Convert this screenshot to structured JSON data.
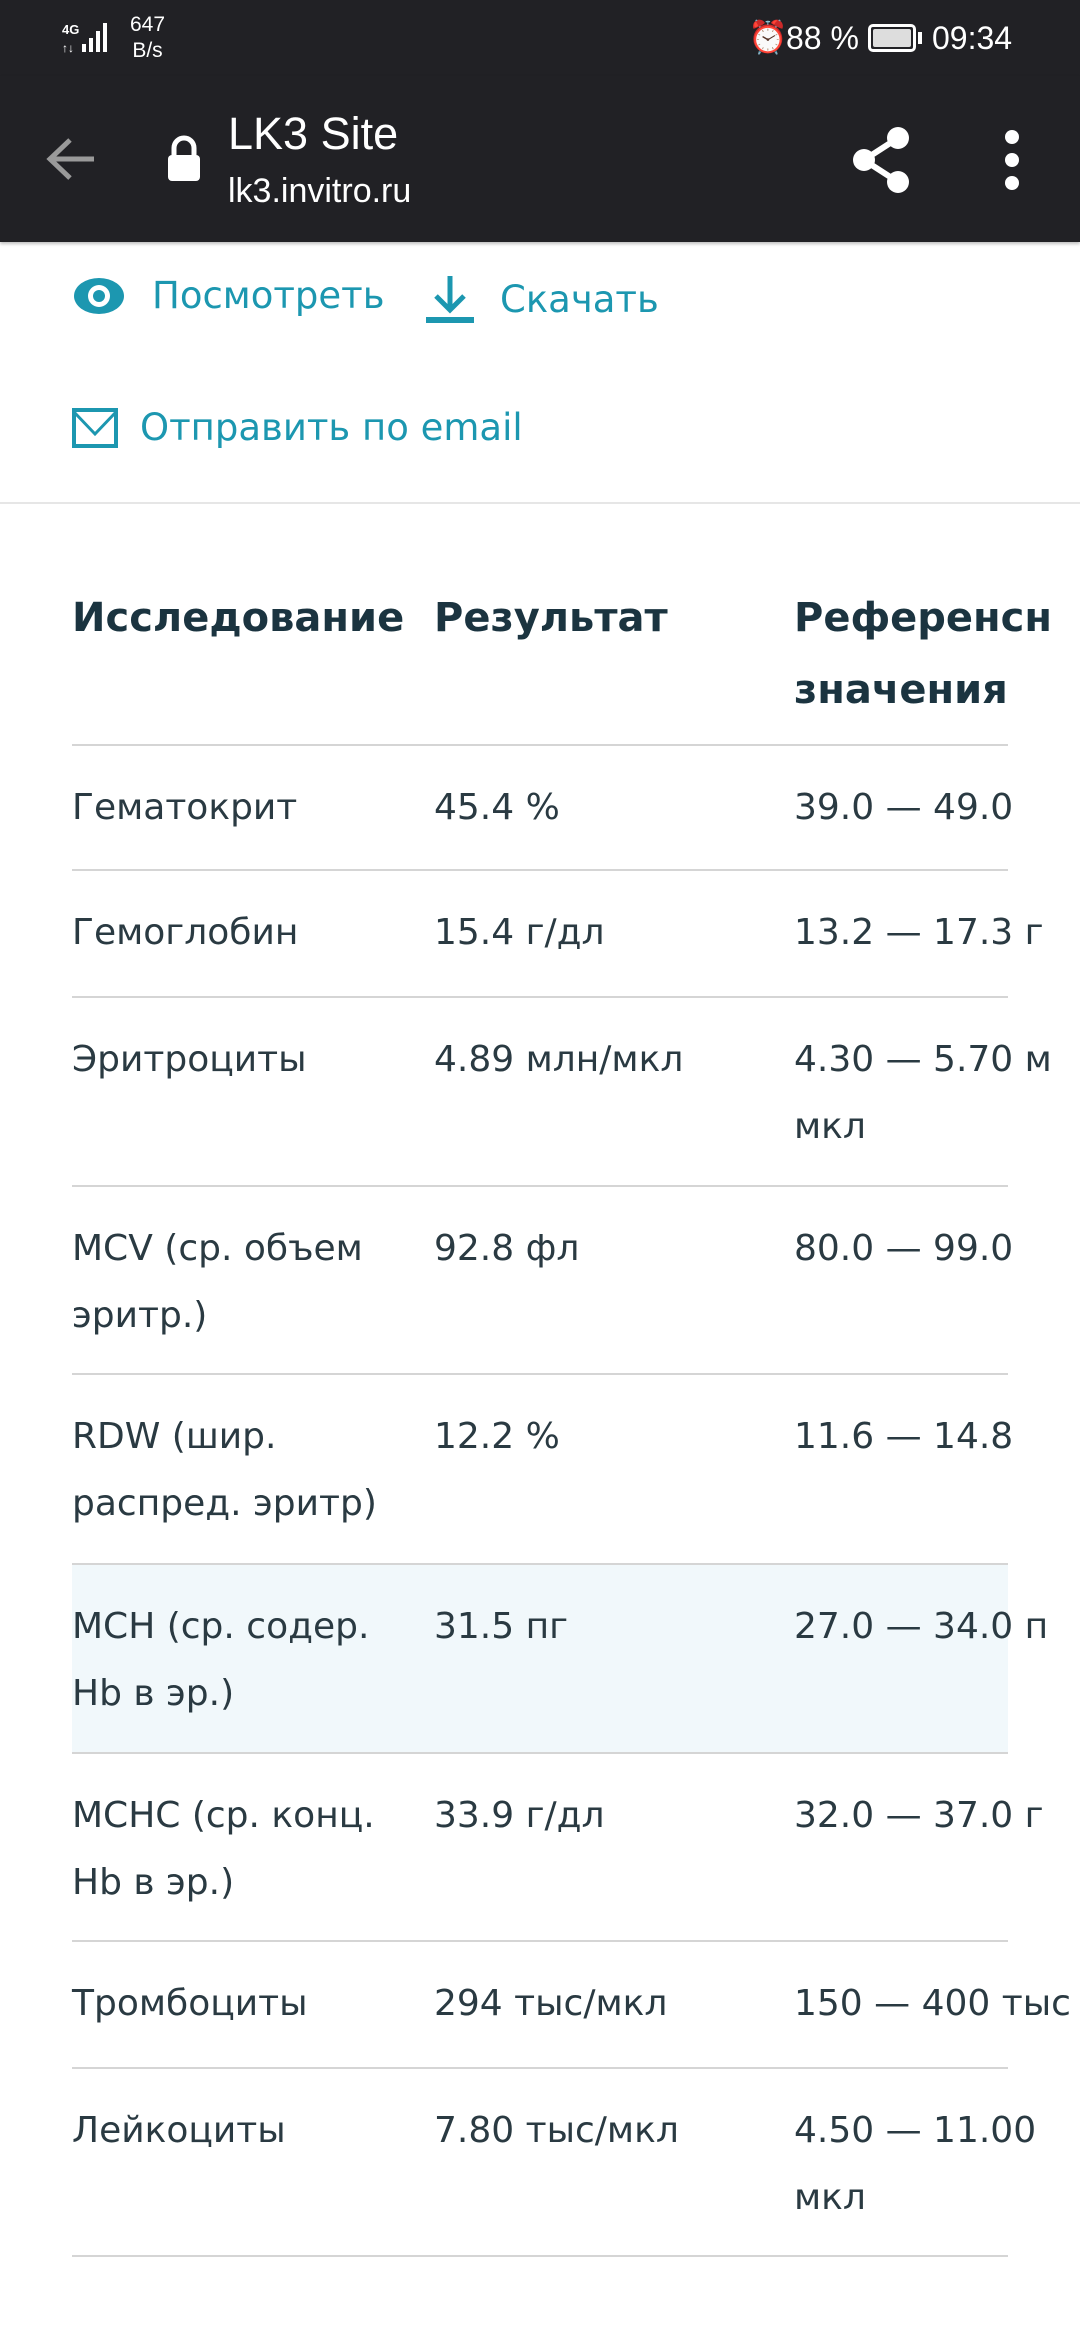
{
  "status_bar": {
    "network": "4G",
    "speed_value": "647",
    "speed_unit": "B/s",
    "battery": "88 %",
    "time": "09:34"
  },
  "toolbar": {
    "title": "LK3 Site",
    "url": "lk3.invitro.ru"
  },
  "actions": {
    "view": "Посмотреть",
    "download": "Скачать",
    "email": "Отправить по email"
  },
  "colors": {
    "accent": "#1c97b0",
    "toolbar_bg": "#212125",
    "highlight_row": "#f1f8fb"
  },
  "table": {
    "headers": [
      "Исследование",
      "Результат",
      "Референсн",
      "значения"
    ],
    "rows": [
      {
        "name": "Гематокрит",
        "result": "45.4 %",
        "ref": "39.0 — 49.0",
        "ref2": "",
        "h": 125
      },
      {
        "name": "Гемоглобин",
        "result": "15.4 г/дл",
        "ref": "13.2 — 17.3 г",
        "ref2": "",
        "h": 127
      },
      {
        "name": "Эритроциты",
        "result": "4.89 млн/мкл",
        "ref": "4.30 — 5.70 м",
        "ref2": "мкл",
        "h": 189
      },
      {
        "name": "MCV (ср. объем эритр.)",
        "result": "92.8 фл",
        "ref": "80.0 — 99.0",
        "ref2": "",
        "h": 188
      },
      {
        "name": "RDW (шир. распред. эритр)",
        "result": "12.2 %",
        "ref": "11.6 — 14.8",
        "ref2": "",
        "h": 190
      },
      {
        "name": "MCH (ср. содер. Hb в эр.)",
        "result": "31.5 пг",
        "ref": "27.0 — 34.0 п",
        "ref2": "",
        "h": 189,
        "highlight": true
      },
      {
        "name": "MCHC (ср. конц. Hb в эр.)",
        "result": "33.9 г/дл",
        "ref": "32.0 — 37.0 г",
        "ref2": "",
        "h": 188
      },
      {
        "name": "Тромбоциты",
        "result": "294 тыс/мкл",
        "ref": "150 — 400 тыс",
        "ref2": "",
        "h": 127
      },
      {
        "name": "Лейкоциты",
        "result": "7.80 тыс/мкл",
        "ref": "4.50 — 11.00",
        "ref2": "мкл",
        "h": 188
      }
    ]
  }
}
